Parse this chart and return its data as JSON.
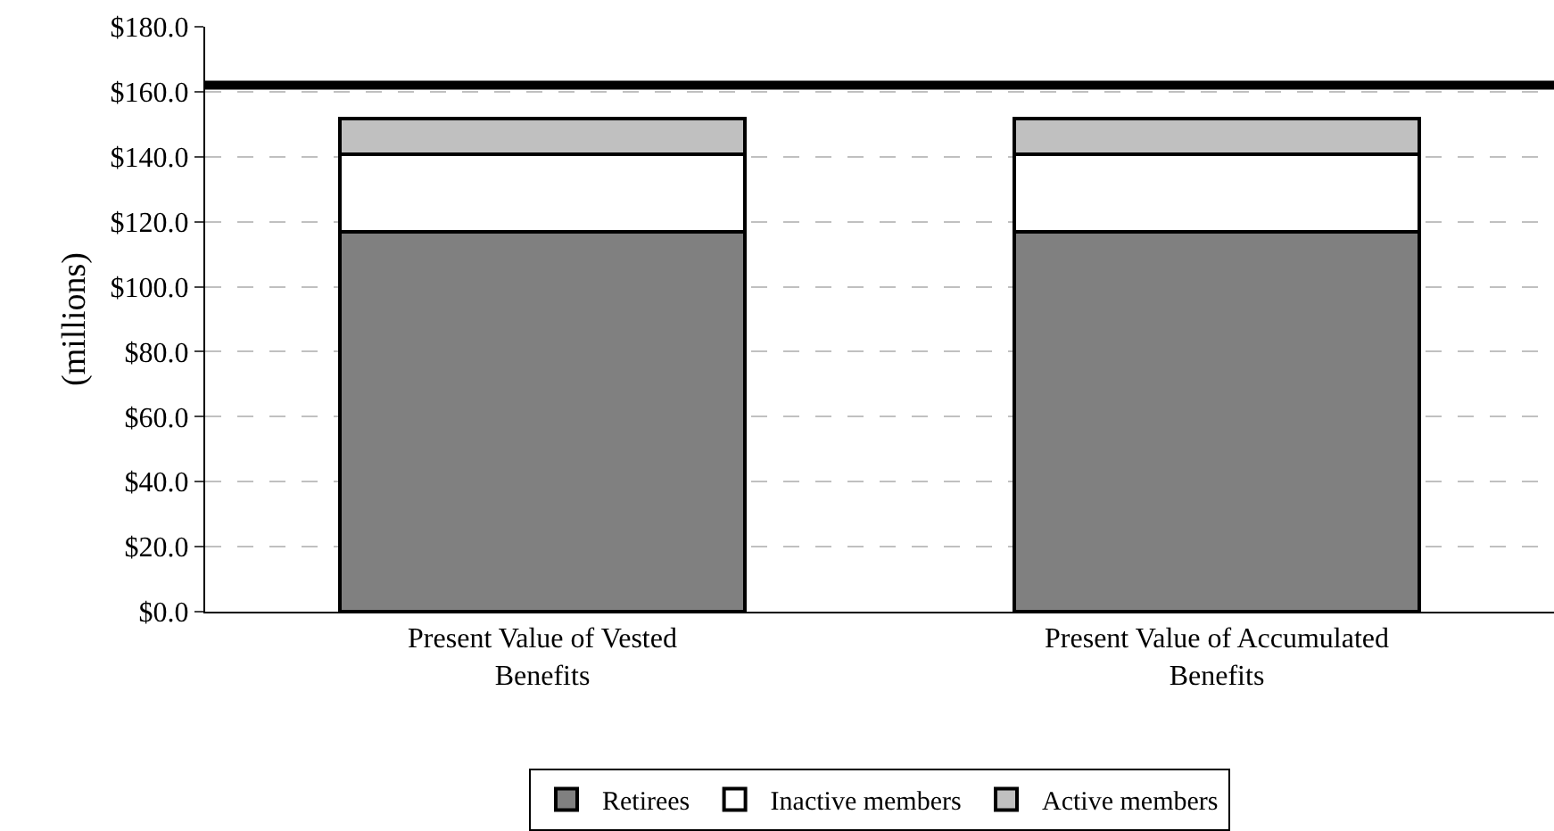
{
  "chart_data": {
    "type": "bar",
    "stacked": true,
    "ylabel": "(millions)",
    "categories": [
      "Present Value of Vested Benefits",
      "Present Value of Accumulated Benefits"
    ],
    "series": [
      {
        "name": "Retirees",
        "color": "#808080",
        "values": [
          116.8,
          116.8
        ]
      },
      {
        "name": "Inactive members",
        "color": "#ffffff",
        "values": [
          24.0,
          24.0
        ]
      },
      {
        "name": "Active members",
        "color": "#c0c0c0",
        "values": [
          11.0,
          11.0
        ]
      }
    ],
    "ylim": [
      0,
      180
    ],
    "yticks": [
      {
        "value": 0,
        "label": "$0.0"
      },
      {
        "value": 20,
        "label": "$20.0"
      },
      {
        "value": 40,
        "label": "$40.0"
      },
      {
        "value": 60,
        "label": "$60.0"
      },
      {
        "value": 80,
        "label": "$80.0"
      },
      {
        "value": 100,
        "label": "$100.0"
      },
      {
        "value": 120,
        "label": "$120.0"
      },
      {
        "value": 140,
        "label": "$140.0"
      },
      {
        "value": 160,
        "label": "$160.0"
      },
      {
        "value": 180,
        "label": "$180.0"
      }
    ],
    "ref_lines": [
      {
        "axis": "y",
        "value": 162,
        "color": "#000000",
        "line_style": "solid"
      }
    ],
    "grid": "y",
    "legend": "bottom"
  }
}
